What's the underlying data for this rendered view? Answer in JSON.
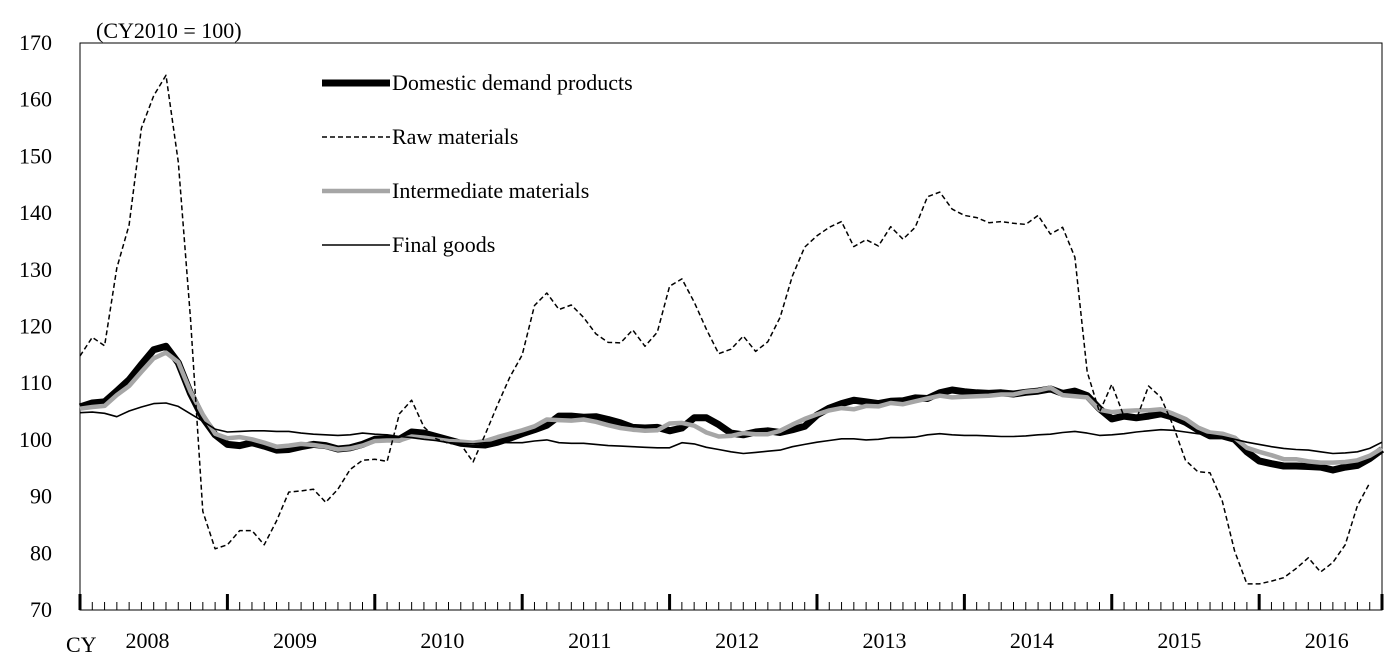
{
  "chart_data": {
    "type": "line",
    "unit_note": "(CY2010 = 100)",
    "x_prefix": "CY",
    "x_start": "2008-01",
    "x_end": "2016-12",
    "years": [
      "2008",
      "2009",
      "2010",
      "2011",
      "2012",
      "2013",
      "2014",
      "2015",
      "2016"
    ],
    "ylim": [
      70,
      170
    ],
    "yticks": [
      70,
      80,
      90,
      100,
      110,
      120,
      130,
      140,
      150,
      160,
      170
    ],
    "legend_position": "top-left",
    "series": [
      {
        "name": "Domestic demand products",
        "color": "#000000",
        "style": "thick-solid",
        "values": [
          105.8,
          106.5,
          106.7,
          108.6,
          110.6,
          113.3,
          115.9,
          116.5,
          113.6,
          108.2,
          103.9,
          100.9,
          99.2,
          99.0,
          99.5,
          98.9,
          98.2,
          98.3,
          98.8,
          99.2,
          99.0,
          98.4,
          98.6,
          99.2,
          100.1,
          100.2,
          100.1,
          101.4,
          101.2,
          100.6,
          100.0,
          99.4,
          99.2,
          99.1,
          99.6,
          100.3,
          101.1,
          101.8,
          102.6,
          104.2,
          104.2,
          104.0,
          104.1,
          103.6,
          103.0,
          102.2,
          102.1,
          102.2,
          101.6,
          102.1,
          103.9,
          103.9,
          102.7,
          101.2,
          100.9,
          101.4,
          101.6,
          101.3,
          101.8,
          102.4,
          104.4,
          105.6,
          106.4,
          107.0,
          106.7,
          106.4,
          106.8,
          106.9,
          107.4,
          107.3,
          108.3,
          108.8,
          108.5,
          108.3,
          108.2,
          108.3,
          108.1,
          108.4,
          108.6,
          109.0,
          108.2,
          108.6,
          107.8,
          105.5,
          103.7,
          104.2,
          103.9,
          104.2,
          104.6,
          104.0,
          103.1,
          101.8,
          100.7,
          100.7,
          100.1,
          97.9,
          96.3,
          95.8,
          95.4,
          95.4,
          95.3,
          95.2,
          94.7,
          95.2,
          95.5,
          96.7,
          98.3
        ]
      },
      {
        "name": "Raw materials",
        "color": "#000000",
        "style": "dashed",
        "values": [
          114.8,
          118.1,
          116.6,
          130.3,
          137.9,
          155.0,
          160.7,
          164.3,
          149.0,
          121.4,
          87.4,
          80.8,
          81.5,
          84.0,
          84.0,
          81.5,
          85.7,
          90.8,
          91.0,
          91.3,
          89.0,
          91.3,
          94.8,
          96.4,
          96.6,
          96.2,
          104.6,
          107.0,
          102.3,
          100.2,
          99.4,
          99.2,
          96.1,
          101.0,
          106.2,
          111.1,
          115.0,
          123.7,
          125.9,
          123.0,
          123.8,
          121.6,
          118.7,
          117.2,
          117.1,
          119.4,
          116.5,
          119.0,
          127.1,
          128.4,
          124.3,
          119.5,
          115.2,
          116.0,
          118.3,
          115.6,
          117.3,
          121.6,
          128.9,
          134.0,
          136.0,
          137.5,
          138.5,
          134.1,
          135.3,
          134.2,
          137.6,
          135.4,
          137.5,
          142.9,
          143.7,
          140.7,
          139.6,
          139.2,
          138.3,
          138.5,
          138.2,
          138.0,
          139.6,
          136.3,
          137.5,
          132.2,
          112.0,
          104.9,
          109.8,
          104.1,
          103.6,
          109.5,
          107.5,
          102.5,
          96.4,
          94.4,
          94.2,
          89.2,
          80.4,
          74.6,
          74.6,
          75.1,
          75.7,
          77.3,
          79.2,
          76.7,
          78.4,
          81.5,
          88.4,
          92.4
        ]
      },
      {
        "name": "Intermediate materials",
        "color": "#a6a6a6",
        "style": "thick-solid",
        "values": [
          105.5,
          105.8,
          106.0,
          107.9,
          109.5,
          112.0,
          114.4,
          115.4,
          113.7,
          108.5,
          104.5,
          101.1,
          100.3,
          100.5,
          100.1,
          99.5,
          98.8,
          99.0,
          99.3,
          99.1,
          98.8,
          98.3,
          98.5,
          99.0,
          99.8,
          99.9,
          99.9,
          100.6,
          100.4,
          100.1,
          99.8,
          99.7,
          99.5,
          99.8,
          100.5,
          101.1,
          101.7,
          102.4,
          103.6,
          103.5,
          103.4,
          103.6,
          103.2,
          102.6,
          102.1,
          101.8,
          101.6,
          101.7,
          102.9,
          103.0,
          102.5,
          101.3,
          100.6,
          100.7,
          101.2,
          101.0,
          101.0,
          101.6,
          102.7,
          103.7,
          104.5,
          105.2,
          105.6,
          105.4,
          106.0,
          105.9,
          106.5,
          106.3,
          106.8,
          107.3,
          107.8,
          107.5,
          107.6,
          107.7,
          107.8,
          108.0,
          108.0,
          108.5,
          108.7,
          109.2,
          107.9,
          107.7,
          107.5,
          105.3,
          104.9,
          105.1,
          105.2,
          105.2,
          105.4,
          104.6,
          103.7,
          102.2,
          101.3,
          101.1,
          100.4,
          98.6,
          97.9,
          97.3,
          96.6,
          96.6,
          96.2,
          96.0,
          96.0,
          96.1,
          96.4,
          97.2,
          98.5
        ]
      },
      {
        "name": "Final goods",
        "color": "#000000",
        "style": "thin-solid",
        "values": [
          104.8,
          104.9,
          104.7,
          104.1,
          105.1,
          105.8,
          106.4,
          106.5,
          105.9,
          104.6,
          103.3,
          101.9,
          101.4,
          101.5,
          101.6,
          101.6,
          101.5,
          101.5,
          101.2,
          101.0,
          100.9,
          100.8,
          100.9,
          101.2,
          101.0,
          100.9,
          100.6,
          100.4,
          100.1,
          99.9,
          99.5,
          99.4,
          99.3,
          99.5,
          99.6,
          99.5,
          99.5,
          99.8,
          100.0,
          99.5,
          99.4,
          99.4,
          99.2,
          99.0,
          98.9,
          98.8,
          98.7,
          98.6,
          98.6,
          99.5,
          99.3,
          98.7,
          98.3,
          97.9,
          97.6,
          97.8,
          98.0,
          98.2,
          98.8,
          99.2,
          99.6,
          99.9,
          100.2,
          100.2,
          100.0,
          100.1,
          100.4,
          100.4,
          100.5,
          100.9,
          101.1,
          100.9,
          100.8,
          100.8,
          100.7,
          100.6,
          100.6,
          100.7,
          100.9,
          101.0,
          101.3,
          101.5,
          101.2,
          100.8,
          100.9,
          101.1,
          101.4,
          101.6,
          101.8,
          101.7,
          101.4,
          101.1,
          100.9,
          100.6,
          100.1,
          99.6,
          99.2,
          98.8,
          98.5,
          98.3,
          98.2,
          97.9,
          97.6,
          97.7,
          97.9,
          98.5,
          99.6
        ]
      }
    ]
  }
}
